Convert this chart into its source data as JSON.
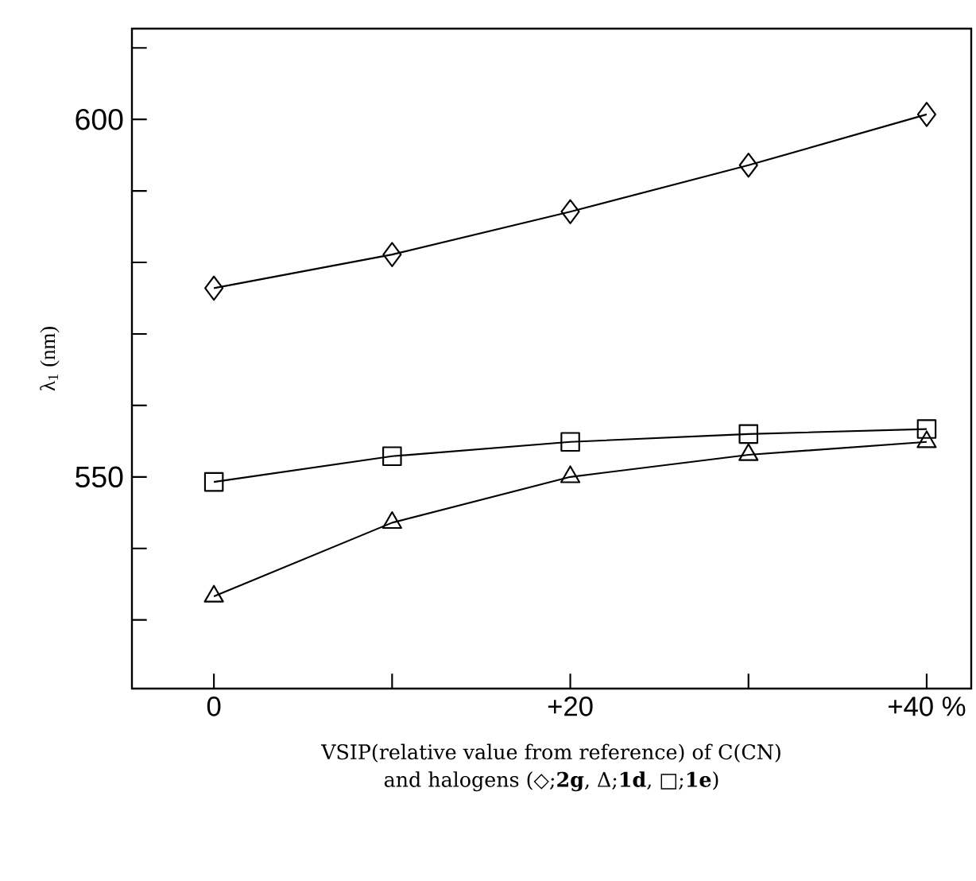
{
  "chart_data": {
    "type": "line",
    "xlabel": "VSIP(relative value from reference) of C(CN)\nand halogens (◇;**2g**, Δ;**1d**, □;**1e**)",
    "ylabel": "λ$_{1}$ (nm)",
    "x": [
      0,
      10,
      20,
      30,
      40
    ],
    "series": [
      {
        "color": "#000000",
        "marker": "diamond",
        "values": [
          576.4,
          581.1,
          587.1,
          593.6,
          600.7
        ]
      },
      {
        "color": "#000000",
        "marker": "triangle",
        "values": [
          533.3,
          543.6,
          550,
          553.1,
          554.9
        ]
      },
      {
        "color": "#000000",
        "marker": "square",
        "values": [
          549.3,
          552.9,
          554.9,
          556.0,
          556.7
        ]
      }
    ],
    "xlim": [
      -4.6,
      42.5
    ],
    "ylim": [
      520.4,
      612.7
    ],
    "xticks": [
      0,
      {
        "value": 10,
        "label": null
      },
      {
        "value": 20,
        "label": "+20"
      },
      {
        "value": 30,
        "label": null
      },
      {
        "value": 40,
        "label": "+40 %"
      }
    ],
    "yticks": [
      {
        "value": 530,
        "label": null
      },
      {
        "value": 540,
        "label": null
      },
      550,
      {
        "value": 560,
        "label": null
      },
      {
        "value": 570,
        "label": null
      },
      {
        "value": 580,
        "label": null
      },
      {
        "value": 590,
        "label": null
      },
      600,
      {
        "value": 610,
        "label": null
      }
    ],
    "grid": false,
    "line_style": "solid"
  }
}
